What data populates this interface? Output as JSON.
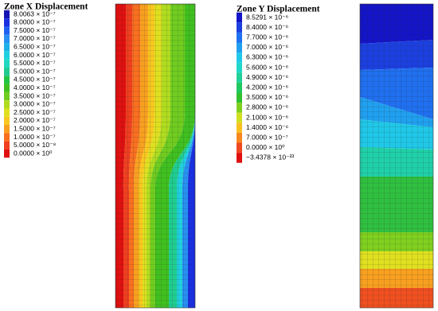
{
  "panels": [
    {
      "title": "Zone X Displacement",
      "legend": [
        {
          "label": "8.0063 × 10⁻⁷",
          "color": "#1414b4"
        },
        {
          "label": "8.0000 × 10⁻⁷",
          "color": "#1a30e0"
        },
        {
          "label": "7.5000 × 10⁻⁷",
          "color": "#2060f0"
        },
        {
          "label": "7.0000 × 10⁻⁷",
          "color": "#2890f0"
        },
        {
          "label": "6.5000 × 10⁻⁷",
          "color": "#20b0e8"
        },
        {
          "label": "6.0000 × 10⁻⁷",
          "color": "#20d0e0"
        },
        {
          "label": "5.5000 × 10⁻⁷",
          "color": "#20d8c0"
        },
        {
          "label": "5.0000 × 10⁻⁷",
          "color": "#20cc90"
        },
        {
          "label": "4.5000 × 10⁻⁷",
          "color": "#22c448"
        },
        {
          "label": "4.0000 × 10⁻⁷",
          "color": "#40c020"
        },
        {
          "label": "3.5000 × 10⁻⁷",
          "color": "#70cc20"
        },
        {
          "label": "3.0000 × 10⁻⁷",
          "color": "#b0dc20"
        },
        {
          "label": "2.5000 × 10⁻⁷",
          "color": "#e0e020"
        },
        {
          "label": "2.0000 × 10⁻⁷",
          "color": "#f8c820"
        },
        {
          "label": "1.5000 × 10⁻⁷",
          "color": "#f8a020"
        },
        {
          "label": "1.0000 × 10⁻⁷",
          "color": "#f87020"
        },
        {
          "label": "5.0000 × 10⁻⁸",
          "color": "#f04020"
        },
        {
          "label": "0.0000 × 10⁰",
          "color": "#e01010"
        }
      ]
    },
    {
      "title": "Zone Y Displacement",
      "legend": [
        {
          "label": "8.5291 × 10⁻⁶",
          "color": "#1414c8"
        },
        {
          "label": "8.4000 × 10⁻⁶",
          "color": "#1c40e0"
        },
        {
          "label": "7.7000 × 10⁻⁶",
          "color": "#2070f0"
        },
        {
          "label": "7.0000 × 10⁻⁶",
          "color": "#20a0f0"
        },
        {
          "label": "6.3000 × 10⁻⁶",
          "color": "#20c8e8"
        },
        {
          "label": "5.6000 × 10⁻⁶",
          "color": "#20d8c8"
        },
        {
          "label": "4.9000 × 10⁻⁶",
          "color": "#20d098"
        },
        {
          "label": "4.2000 × 10⁻⁶",
          "color": "#20c860"
        },
        {
          "label": "3.5000 × 10⁻⁶",
          "color": "#30c030"
        },
        {
          "label": "2.8000 × 10⁻⁶",
          "color": "#80d020"
        },
        {
          "label": "2.1000 × 10⁻⁶",
          "color": "#d0e020"
        },
        {
          "label": "1.4000 × 10⁻⁶",
          "color": "#f8c020"
        },
        {
          "label": "7.0000 × 10⁻⁷",
          "color": "#f88820"
        },
        {
          "label": "0.0000 × 10⁰",
          "color": "#f04820"
        },
        {
          "label": "−3.4378 × 10⁻²³",
          "color": "#e01010"
        }
      ]
    }
  ]
}
